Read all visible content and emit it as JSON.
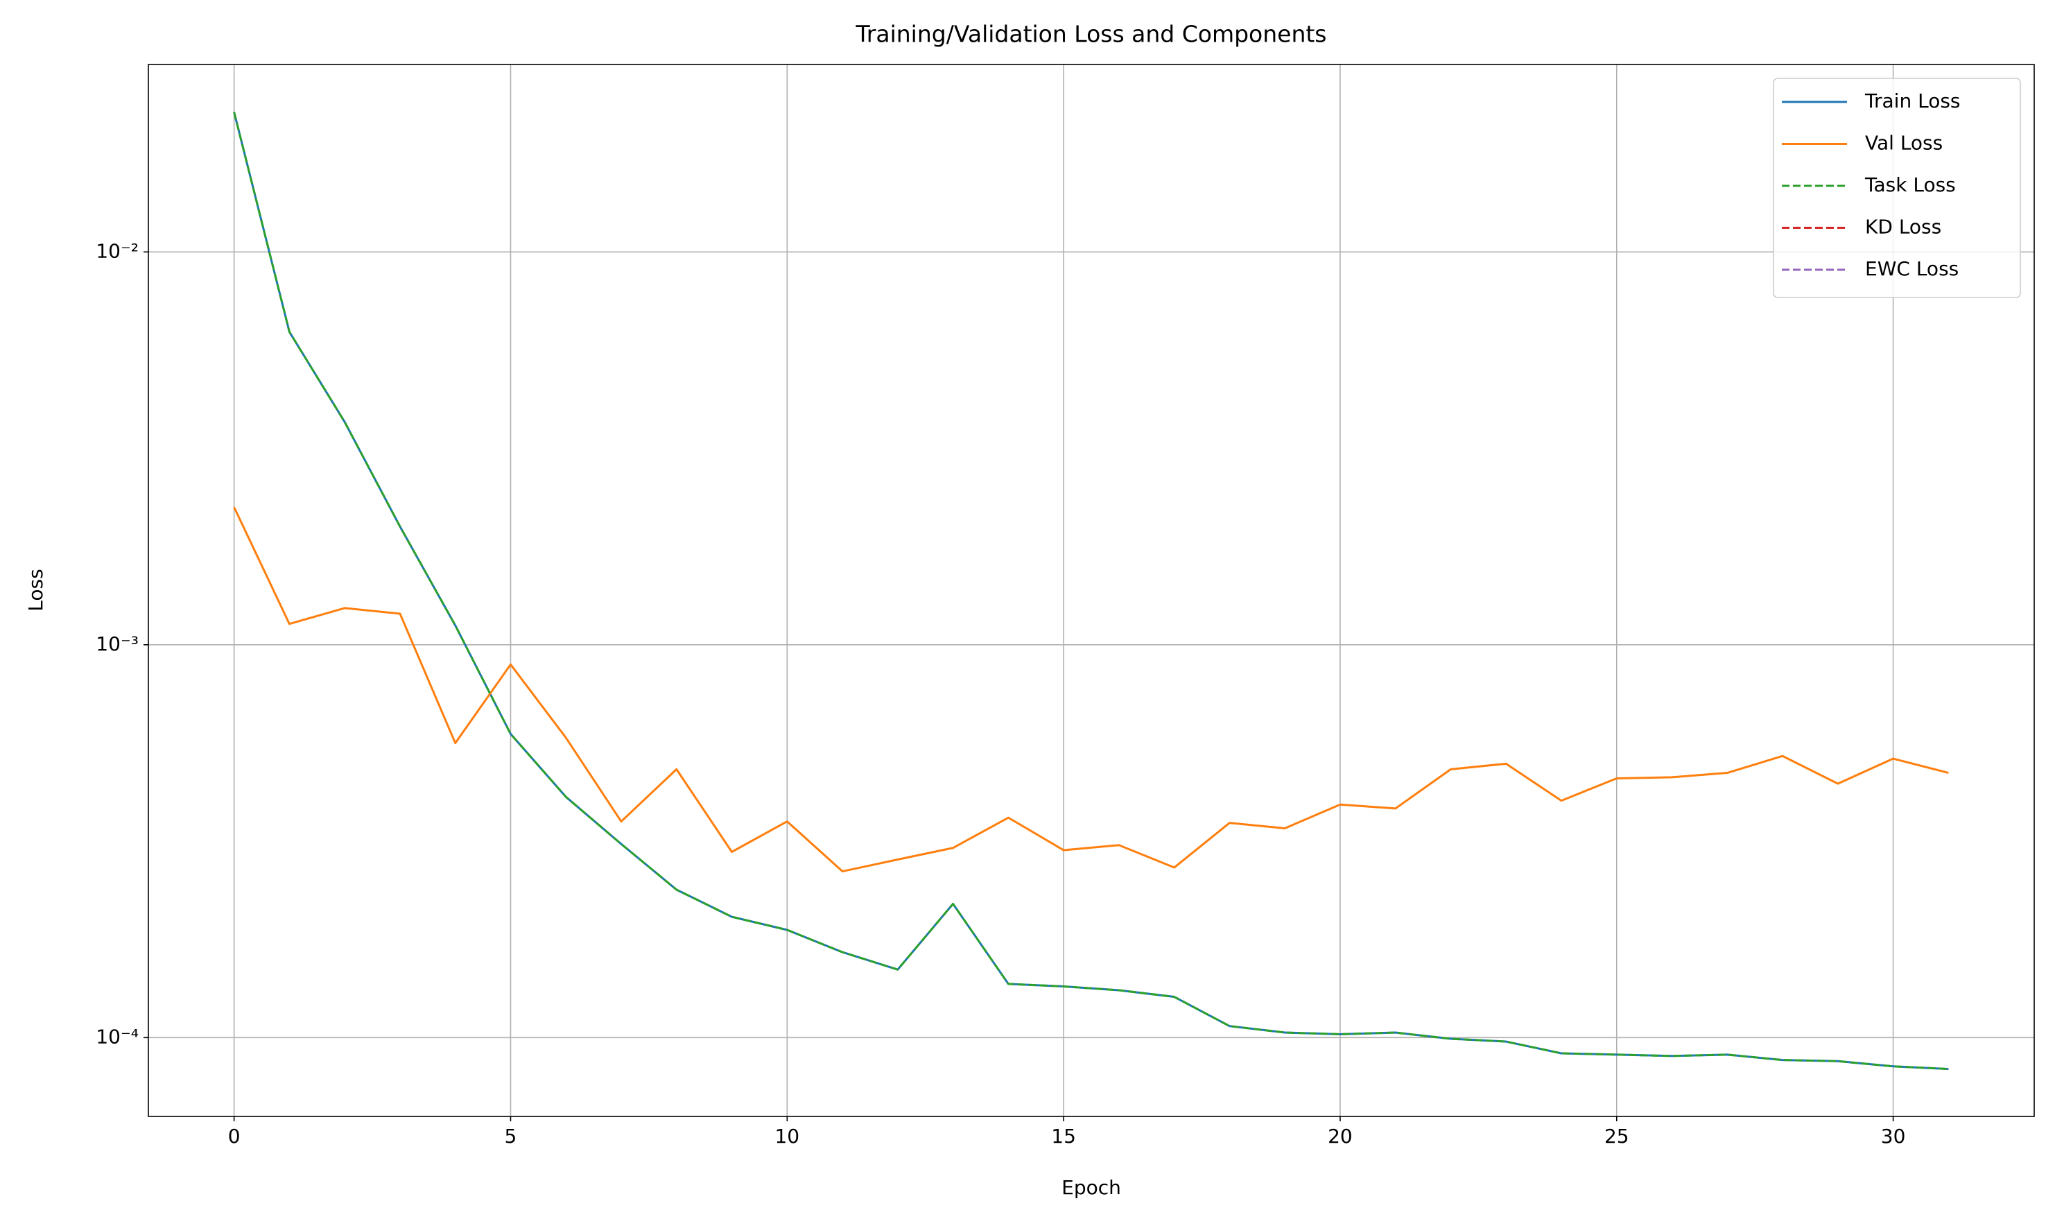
{
  "chart_data": {
    "type": "line",
    "title": "Training/Validation Loss and Components",
    "xlabel": "Epoch",
    "ylabel": "Loss",
    "x": [
      0,
      1,
      2,
      3,
      4,
      5,
      6,
      7,
      8,
      9,
      10,
      11,
      12,
      13,
      14,
      15,
      16,
      17,
      18,
      19,
      20,
      21,
      22,
      23,
      24,
      25,
      26,
      27,
      28,
      29,
      30,
      31
    ],
    "series": [
      {
        "name": "Train Loss",
        "color": "#1f77b4",
        "dash": false,
        "values": [
          0.0227,
          0.00626,
          0.00369,
          0.002,
          0.00112,
          0.000593,
          0.00041,
          0.000311,
          0.000238,
          0.000203,
          0.000188,
          0.000165,
          0.000149,
          0.000219,
          0.000137,
          0.000135,
          0.000132,
          0.000127,
          0.000107,
          0.000103,
          0.000102,
          0.000103,
          9.93e-05,
          9.77e-05,
          9.12e-05,
          9.05e-05,
          8.98e-05,
          9.05e-05,
          8.77e-05,
          8.71e-05,
          8.45e-05,
          8.32e-05
        ]
      },
      {
        "name": "Val Loss",
        "color": "#ff7f0e",
        "dash": false,
        "values": [
          0.00224,
          0.00113,
          0.00124,
          0.0012,
          0.000562,
          0.000891,
          0.00058,
          0.000355,
          0.000482,
          0.000297,
          0.000355,
          0.000265,
          0.000284,
          0.000304,
          0.000363,
          0.0003,
          0.000309,
          0.000271,
          0.000352,
          0.000341,
          0.000392,
          0.000383,
          0.000482,
          0.000498,
          0.000401,
          0.000457,
          0.00046,
          0.000472,
          0.000521,
          0.000443,
          0.000513,
          0.000472
        ]
      },
      {
        "name": "Task Loss",
        "color": "#2ca02c",
        "dash": true,
        "values": [
          0.0227,
          0.00626,
          0.00369,
          0.002,
          0.00112,
          0.000593,
          0.00041,
          0.000311,
          0.000238,
          0.000203,
          0.000188,
          0.000165,
          0.000149,
          0.000219,
          0.000137,
          0.000135,
          0.000132,
          0.000127,
          0.000107,
          0.000103,
          0.000102,
          0.000103,
          9.93e-05,
          9.77e-05,
          9.12e-05,
          9.05e-05,
          8.98e-05,
          9.05e-05,
          8.77e-05,
          8.71e-05,
          8.45e-05,
          8.32e-05
        ]
      },
      {
        "name": "KD Loss",
        "color": "#d62728",
        "dash": true,
        "values": [
          null,
          null,
          null,
          null,
          null,
          null,
          null,
          null,
          null,
          null,
          null,
          null,
          null,
          null,
          null,
          null,
          null,
          null,
          null,
          null,
          null,
          null,
          null,
          null,
          null,
          null,
          null,
          null,
          null,
          null,
          null,
          null
        ]
      },
      {
        "name": "EWC Loss",
        "color": "#9467bd",
        "dash": true,
        "values": [
          null,
          null,
          null,
          null,
          null,
          null,
          null,
          null,
          null,
          null,
          null,
          null,
          null,
          null,
          null,
          null,
          null,
          null,
          null,
          null,
          null,
          null,
          null,
          null,
          null,
          null,
          null,
          null,
          null,
          null,
          null,
          null
        ]
      }
    ],
    "xlim": [
      -1.55,
      32.55
    ],
    "xticks": [
      0,
      5,
      10,
      15,
      20,
      25,
      30
    ],
    "ylim": [
      6.3e-05,
      0.03
    ],
    "ylog": true,
    "yticks": [
      {
        "value": 0.01,
        "label": "10⁻²"
      },
      {
        "value": 0.001,
        "label": "10⁻³"
      },
      {
        "value": 0.0001,
        "label": "10⁻⁴"
      }
    ],
    "grid": true,
    "legend": "upper right"
  }
}
